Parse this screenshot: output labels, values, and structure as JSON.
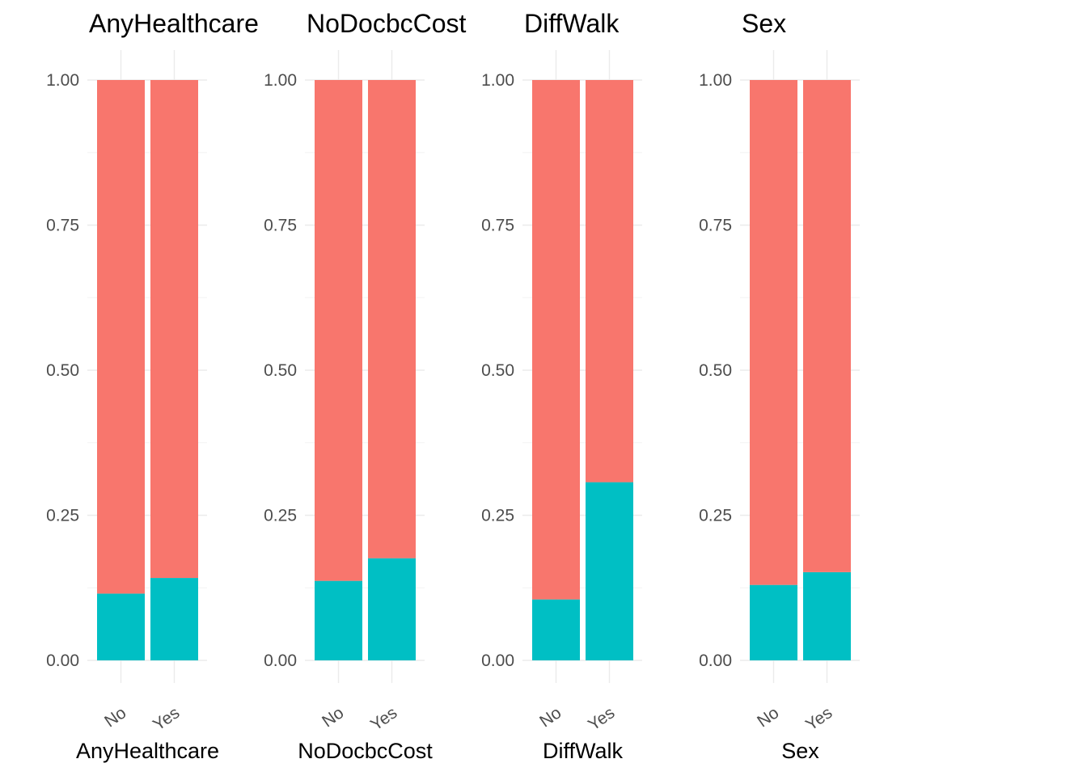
{
  "chart_data": [
    {
      "type": "bar",
      "stacked": true,
      "title": "AnyHealthcare",
      "xlabel": "AnyHealthcare",
      "ylabel": "",
      "categories": [
        "No",
        "Yes"
      ],
      "ylim": [
        0,
        1
      ],
      "yticks": [
        "0.00",
        "0.25",
        "0.50",
        "0.75",
        "1.00"
      ],
      "series": [
        {
          "color": "#00BFC4",
          "values": [
            0.115,
            0.142
          ]
        },
        {
          "color": "#F8766D",
          "values": [
            0.885,
            0.858
          ]
        }
      ]
    },
    {
      "type": "bar",
      "stacked": true,
      "title": "NoDocbcCost",
      "xlabel": "NoDocbcCost",
      "ylabel": "",
      "categories": [
        "No",
        "Yes"
      ],
      "ylim": [
        0,
        1
      ],
      "yticks": [
        "0.00",
        "0.25",
        "0.50",
        "0.75",
        "1.00"
      ],
      "series": [
        {
          "color": "#00BFC4",
          "values": [
            0.137,
            0.176
          ]
        },
        {
          "color": "#F8766D",
          "values": [
            0.863,
            0.824
          ]
        }
      ]
    },
    {
      "type": "bar",
      "stacked": true,
      "title": "DiffWalk",
      "xlabel": "DiffWalk",
      "ylabel": "",
      "categories": [
        "No",
        "Yes"
      ],
      "ylim": [
        0,
        1
      ],
      "yticks": [
        "0.00",
        "0.25",
        "0.50",
        "0.75",
        "1.00"
      ],
      "series": [
        {
          "color": "#00BFC4",
          "values": [
            0.105,
            0.307
          ]
        },
        {
          "color": "#F8766D",
          "values": [
            0.895,
            0.693
          ]
        }
      ]
    },
    {
      "type": "bar",
      "stacked": true,
      "title": "Sex",
      "xlabel": "Sex",
      "ylabel": "",
      "categories": [
        "No",
        "Yes"
      ],
      "ylim": [
        0,
        1
      ],
      "yticks": [
        "0.00",
        "0.25",
        "0.50",
        "0.75",
        "1.00"
      ],
      "series": [
        {
          "color": "#00BFC4",
          "values": [
            0.13,
            0.152
          ]
        },
        {
          "color": "#F8766D",
          "values": [
            0.87,
            0.848
          ]
        }
      ]
    }
  ]
}
